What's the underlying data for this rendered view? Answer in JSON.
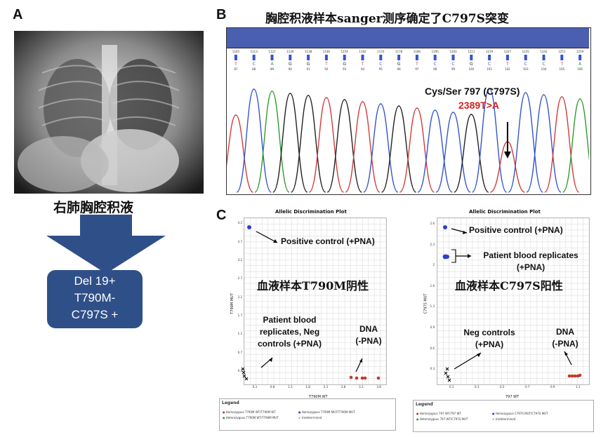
{
  "panelA": {
    "letter": "A",
    "caption": "右肺胸腔积液",
    "result_lines": [
      "Del 19+",
      "T790M-",
      "C797S +"
    ]
  },
  "panelB": {
    "letter": "B",
    "title": "胸腔积液样本sanger测序确定了C797S突变",
    "mutation_label": "Cys/Ser 797 (C797S)",
    "nucleotide_change": "2389T>A",
    "colors": {
      "bar": "#4a5fb0",
      "A": "#2e9c2e",
      "C": "#3355cc",
      "G": "#222222",
      "T": "#d23b3b"
    },
    "bases": [
      "T",
      "C",
      "A",
      "G",
      "G",
      "T",
      "G",
      "T",
      "C",
      "G",
      "T",
      "C",
      "C",
      "G",
      "C",
      "T",
      "C",
      "C",
      "T",
      "A"
    ],
    "positions": [
      "87",
      "88",
      "89",
      "90",
      "91",
      "92",
      "93",
      "94",
      "95",
      "96",
      "97",
      "98",
      "99",
      "100",
      "101",
      "102",
      "103",
      "104",
      "105",
      "106"
    ],
    "index_labels": [
      "1105",
      "1113",
      "1121",
      "1130",
      "1138",
      "1146",
      "1154",
      "1162",
      "1170",
      "1178",
      "1186",
      "1195",
      "1203",
      "1211",
      "1219",
      "1227",
      "1235",
      "1243",
      "1251",
      "1259"
    ]
  },
  "panelC": {
    "letter": "C",
    "plots": [
      {
        "title": "Allelic Discrimination Plot",
        "xlabel": "T790M WT",
        "ylabel": "T790M MUT",
        "yticks": [
          "4.2",
          "3.7",
          "3.2",
          "2.7",
          "2.2",
          "1.7",
          "1.2",
          "0.7",
          "0.2"
        ],
        "xticks": [
          "0.3",
          "0.8",
          "1.3",
          "1.8",
          "2.3",
          "2.8",
          "3.3",
          "3.8"
        ],
        "annotations": {
          "positive": "Positive control (+PNA)",
          "blood": "Patient blood\nreplicates, Neg\ncontrols (+PNA)",
          "dna": "DNA\n(-PNA)"
        },
        "chinese_label": "血液样本T790M阴性",
        "legend": {
          "title": "Legend",
          "items": [
            "Homozygous T790M WT/T790M WT",
            "Heterozygous T790M WT/T790M MUT",
            "Homozygous T790M MUT/T790M MUT",
            "Undetermined"
          ]
        }
      },
      {
        "title": "Allelic Discrimination Plot",
        "xlabel": "797 WT",
        "ylabel": "C797S MUT",
        "yticks": [
          "2.6",
          "2.3",
          "2",
          "1.6",
          "1.3",
          "0.9",
          "0.6",
          "0.3"
        ],
        "xticks": [
          "0.1",
          "0.3",
          "0.5",
          "0.7",
          "0.9",
          "1.1"
        ],
        "annotations": {
          "positive": "Positive control (+PNA)",
          "blood": "Patient blood replicates\n(+PNA)",
          "neg": "Neg controls\n(+PNA)",
          "dna": "DNA\n(-PNA)"
        },
        "chinese_label": "血液样本C797S阳性",
        "legend": {
          "title": "Legend",
          "items": [
            "Homozygous 797 WT/797 WT",
            "Heterozygous 797 WT/C797S MUT",
            "Homozygous C797S MUT/C797S MUT",
            "Undetermined"
          ]
        }
      }
    ]
  }
}
